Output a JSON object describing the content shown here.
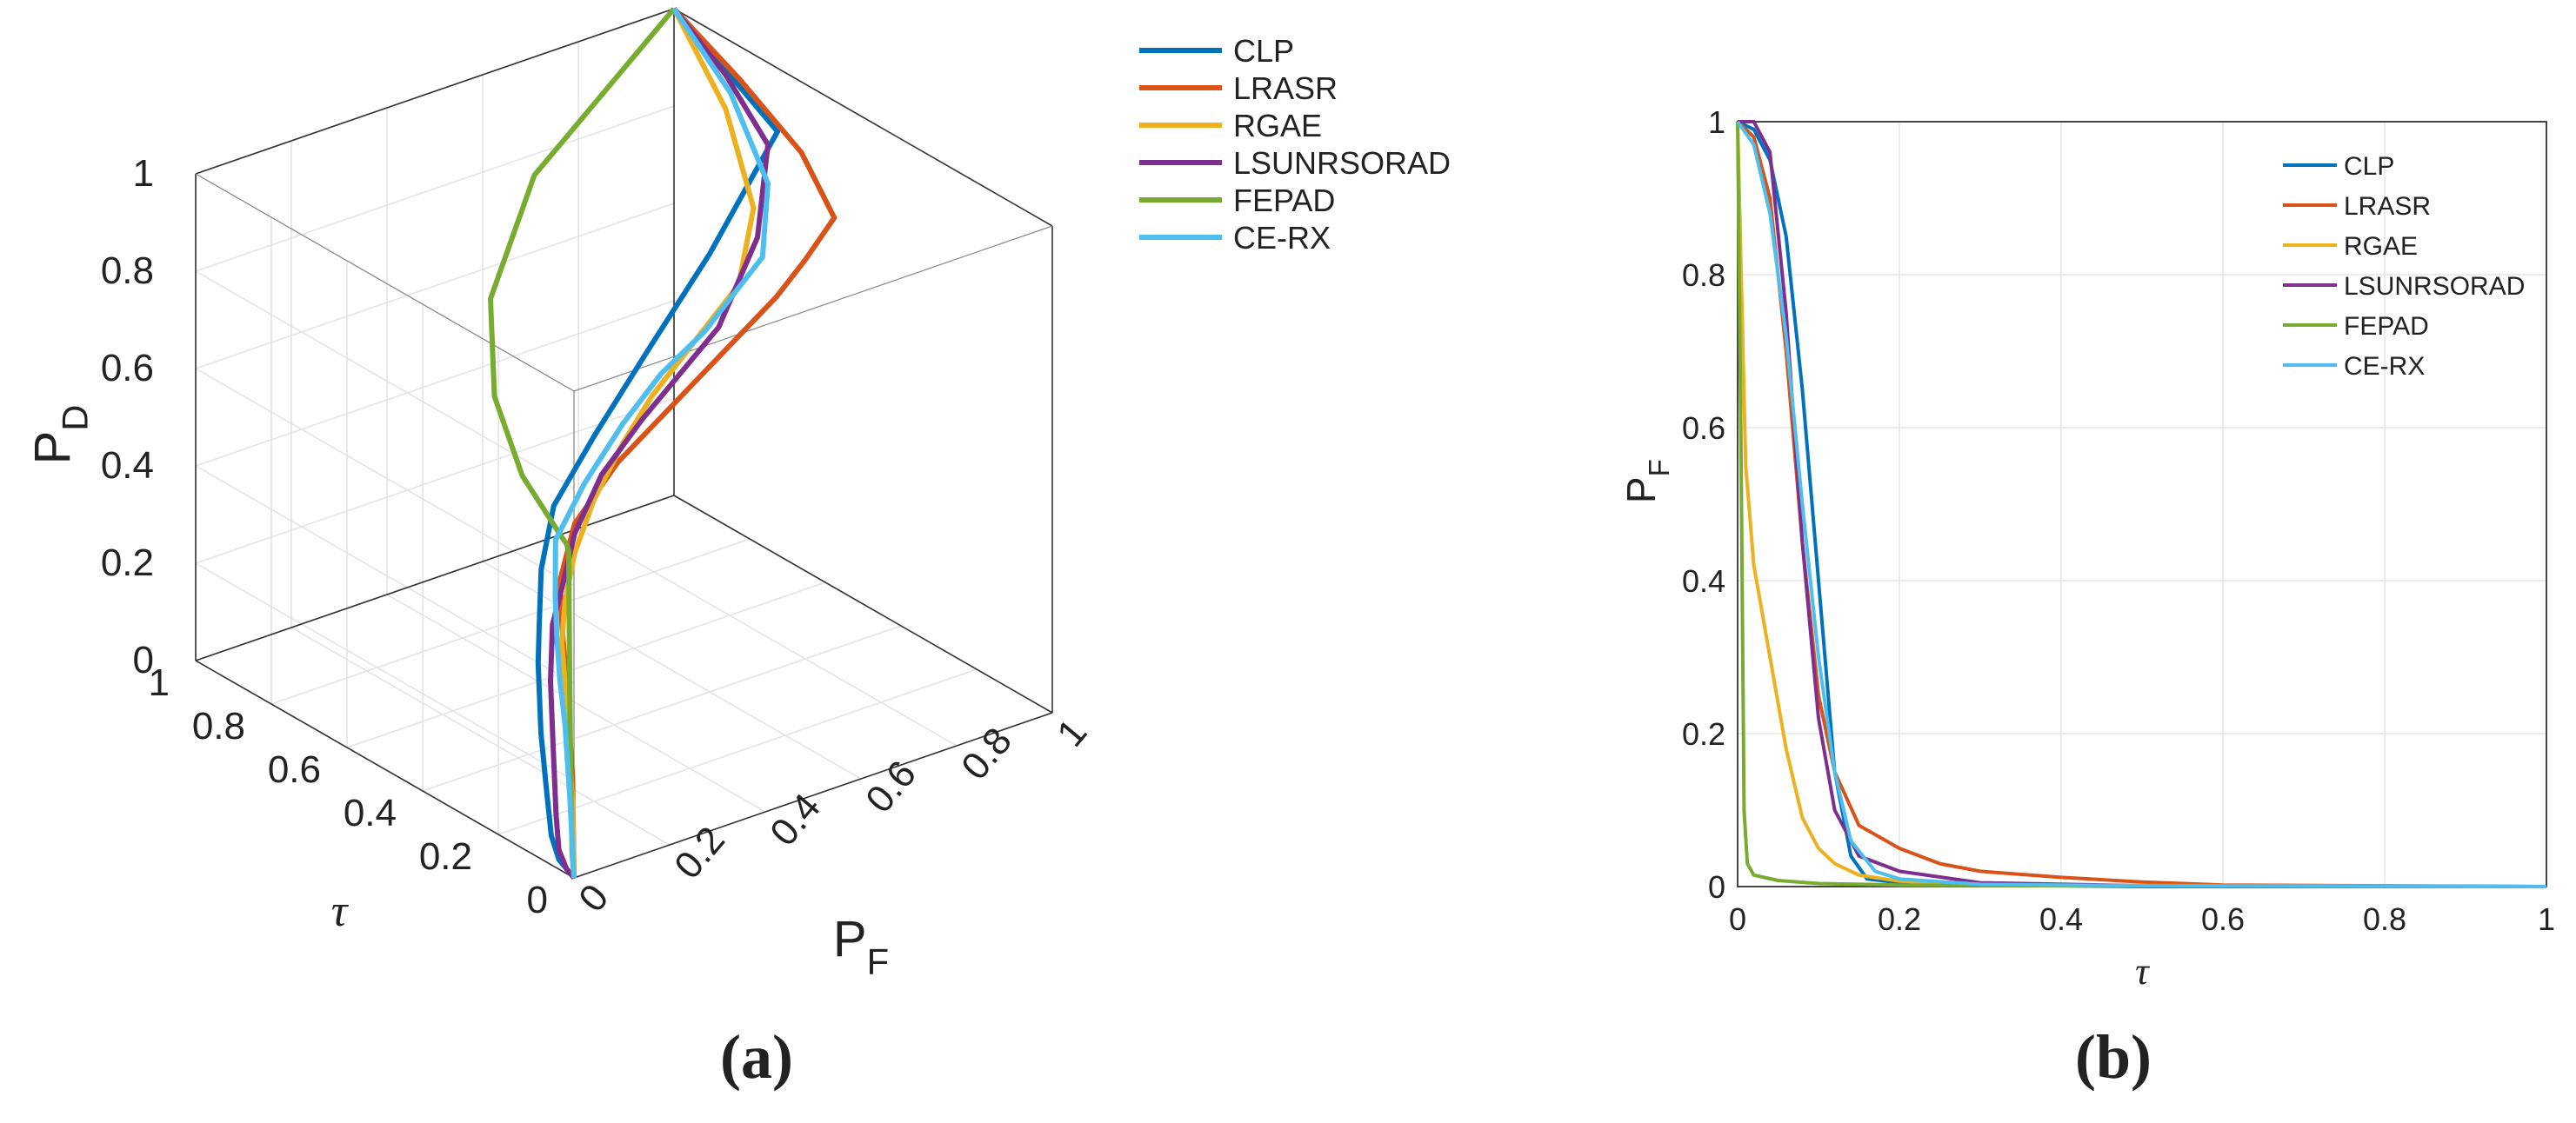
{
  "figure": {
    "caption_a": "(a)",
    "caption_b": "(b)"
  },
  "chart_data": [
    {
      "id": "a",
      "type": "line",
      "projection": "3d",
      "title": "",
      "xlabel": "τ",
      "ylabel": "P_F",
      "zlabel": "P_D",
      "xlim": [
        1,
        0
      ],
      "ylim": [
        0,
        1
      ],
      "zlim": [
        0,
        1
      ],
      "x_ticks": [
        "1",
        "0.8",
        "0.6",
        "0.4",
        "0.2",
        "0"
      ],
      "y_ticks": [
        "0",
        "0.2",
        "0.4",
        "0.6",
        "0.8",
        "1"
      ],
      "z_ticks": [
        "0",
        "0.2",
        "0.4",
        "0.6",
        "0.8",
        "1"
      ],
      "grid": true,
      "legend": "outside-top-right",
      "series": [
        {
          "name": "CLP",
          "color": "#0072BD",
          "tau": [
            1,
            0.8,
            0.6,
            0.4,
            0.25,
            0.2,
            0.18,
            0.15,
            0.13,
            0.12,
            0.1,
            0.08,
            0.06,
            0.04,
            0.02,
            0
          ],
          "pf": [
            1,
            0.95,
            0.9,
            0.6,
            0.35,
            0.2,
            0.1,
            0.05,
            0.03,
            0.02,
            0.01,
            0.005,
            0,
            0,
            0,
            0
          ],
          "pd": [
            1,
            0.98,
            0.96,
            0.9,
            0.85,
            0.75,
            0.65,
            0.55,
            0.45,
            0.38,
            0.25,
            0.15,
            0.06,
            0.02,
            0.01,
            0
          ]
        },
        {
          "name": "LRASR",
          "color": "#D95319",
          "tau": [
            1,
            0.8,
            0.6,
            0.45,
            0.4,
            0.35,
            0.3,
            0.25,
            0.2,
            0.15,
            0.1,
            0.07,
            0.05,
            0.03,
            0.01,
            0
          ],
          "pf": [
            1,
            0.98,
            0.95,
            0.9,
            0.8,
            0.7,
            0.55,
            0.4,
            0.25,
            0.12,
            0.05,
            0.03,
            0.02,
            0.01,
            0.005,
            0
          ],
          "pd": [
            1,
            0.95,
            0.9,
            0.85,
            0.82,
            0.8,
            0.76,
            0.72,
            0.68,
            0.62,
            0.55,
            0.48,
            0.42,
            0.35,
            0.2,
            0
          ]
        },
        {
          "name": "RGAE",
          "color": "#EDB120",
          "tau": [
            1,
            0.8,
            0.6,
            0.45,
            0.4,
            0.35,
            0.3,
            0.25,
            0.2,
            0.15,
            0.1,
            0.07,
            0.05,
            0.03,
            0.01,
            0
          ],
          "pf": [
            1,
            0.95,
            0.85,
            0.7,
            0.6,
            0.5,
            0.4,
            0.3,
            0.2,
            0.12,
            0.06,
            0.03,
            0.02,
            0.01,
            0.005,
            0
          ],
          "pd": [
            1,
            0.9,
            0.82,
            0.78,
            0.76,
            0.74,
            0.72,
            0.68,
            0.62,
            0.56,
            0.5,
            0.44,
            0.38,
            0.3,
            0.15,
            0
          ]
        },
        {
          "name": "LSUNRSORAD",
          "color": "#7E2F8E",
          "tau": [
            1,
            0.8,
            0.6,
            0.4,
            0.25,
            0.2,
            0.18,
            0.15,
            0.13,
            0.12,
            0.1,
            0.08,
            0.06,
            0.04,
            0.02,
            0
          ],
          "pf": [
            1,
            0.95,
            0.88,
            0.7,
            0.5,
            0.3,
            0.2,
            0.12,
            0.08,
            0.05,
            0.03,
            0.02,
            0.01,
            0,
            0,
            0
          ],
          "pd": [
            1,
            0.97,
            0.94,
            0.9,
            0.85,
            0.75,
            0.68,
            0.6,
            0.52,
            0.45,
            0.35,
            0.22,
            0.1,
            0.04,
            0.01,
            0
          ]
        },
        {
          "name": "FEPAD",
          "color": "#77AC30",
          "tau": [
            1,
            0.8,
            0.6,
            0.4,
            0.2,
            0.1,
            0.05,
            0.03,
            0.02,
            0.015,
            0.01,
            0.005,
            0
          ],
          "pf": [
            1,
            0.55,
            0.3,
            0.15,
            0.05,
            0.02,
            0.01,
            0.008,
            0.005,
            0.002,
            0.001,
            0,
            0
          ],
          "pd": [
            1,
            0.9,
            0.82,
            0.76,
            0.72,
            0.7,
            0.68,
            0.67,
            0.66,
            0.5,
            0.2,
            0.05,
            0
          ]
        },
        {
          "name": "CE-RX",
          "color": "#4DBEEE",
          "tau": [
            1,
            0.8,
            0.6,
            0.45,
            0.4,
            0.35,
            0.3,
            0.25,
            0.2,
            0.15,
            0.1,
            0.07,
            0.05,
            0.03,
            0.01,
            0
          ],
          "pf": [
            1,
            0.96,
            0.88,
            0.75,
            0.65,
            0.55,
            0.42,
            0.3,
            0.18,
            0.08,
            0.04,
            0.02,
            0.01,
            0.005,
            0,
            0
          ],
          "pd": [
            1,
            0.93,
            0.86,
            0.82,
            0.8,
            0.78,
            0.76,
            0.72,
            0.66,
            0.6,
            0.52,
            0.45,
            0.38,
            0.3,
            0.15,
            0
          ]
        }
      ]
    },
    {
      "id": "b",
      "type": "line",
      "title": "",
      "xlabel": "τ",
      "ylabel": "P_F",
      "xlim": [
        0,
        1
      ],
      "ylim": [
        0,
        1
      ],
      "x_ticks": [
        "0",
        "0.2",
        "0.4",
        "0.6",
        "0.8",
        "1"
      ],
      "y_ticks": [
        "0",
        "0.2",
        "0.4",
        "0.6",
        "0.8",
        "1"
      ],
      "grid": true,
      "legend": "top-right",
      "series": [
        {
          "name": "CLP",
          "color": "#0072BD",
          "x": [
            0,
            0.02,
            0.04,
            0.06,
            0.08,
            0.1,
            0.12,
            0.14,
            0.16,
            0.2,
            0.3,
            0.5,
            1
          ],
          "y": [
            1,
            0.99,
            0.95,
            0.85,
            0.65,
            0.4,
            0.15,
            0.04,
            0.01,
            0.005,
            0.002,
            0,
            0
          ]
        },
        {
          "name": "LRASR",
          "color": "#D95319",
          "x": [
            0,
            0.02,
            0.04,
            0.06,
            0.08,
            0.1,
            0.12,
            0.15,
            0.2,
            0.25,
            0.3,
            0.4,
            0.5,
            0.6,
            1
          ],
          "y": [
            1,
            0.98,
            0.9,
            0.7,
            0.45,
            0.25,
            0.15,
            0.08,
            0.05,
            0.03,
            0.02,
            0.012,
            0.006,
            0.002,
            0
          ]
        },
        {
          "name": "RGAE",
          "color": "#EDB120",
          "x": [
            0,
            0.01,
            0.02,
            0.04,
            0.06,
            0.08,
            0.1,
            0.12,
            0.15,
            0.2,
            0.3,
            1
          ],
          "y": [
            1,
            0.55,
            0.42,
            0.3,
            0.18,
            0.09,
            0.05,
            0.03,
            0.015,
            0.007,
            0.002,
            0
          ]
        },
        {
          "name": "LSUNRSORAD",
          "color": "#7E2F8E",
          "x": [
            0,
            0.02,
            0.04,
            0.06,
            0.08,
            0.1,
            0.12,
            0.15,
            0.2,
            0.3,
            0.5,
            1
          ],
          "y": [
            1,
            1,
            0.96,
            0.75,
            0.45,
            0.22,
            0.1,
            0.04,
            0.02,
            0.005,
            0.001,
            0
          ]
        },
        {
          "name": "FEPAD",
          "color": "#77AC30",
          "x": [
            0,
            0.004,
            0.008,
            0.012,
            0.02,
            0.05,
            0.1,
            0.2,
            0.4,
            1
          ],
          "y": [
            1,
            0.6,
            0.1,
            0.03,
            0.015,
            0.008,
            0.004,
            0.002,
            0.001,
            0
          ]
        },
        {
          "name": "CE-RX",
          "color": "#4DBEEE",
          "x": [
            0,
            0.02,
            0.04,
            0.06,
            0.08,
            0.1,
            0.12,
            0.14,
            0.17,
            0.2,
            0.3,
            0.5,
            1
          ],
          "y": [
            1,
            0.97,
            0.88,
            0.72,
            0.5,
            0.3,
            0.15,
            0.06,
            0.02,
            0.01,
            0.003,
            0.001,
            0
          ]
        }
      ]
    }
  ]
}
